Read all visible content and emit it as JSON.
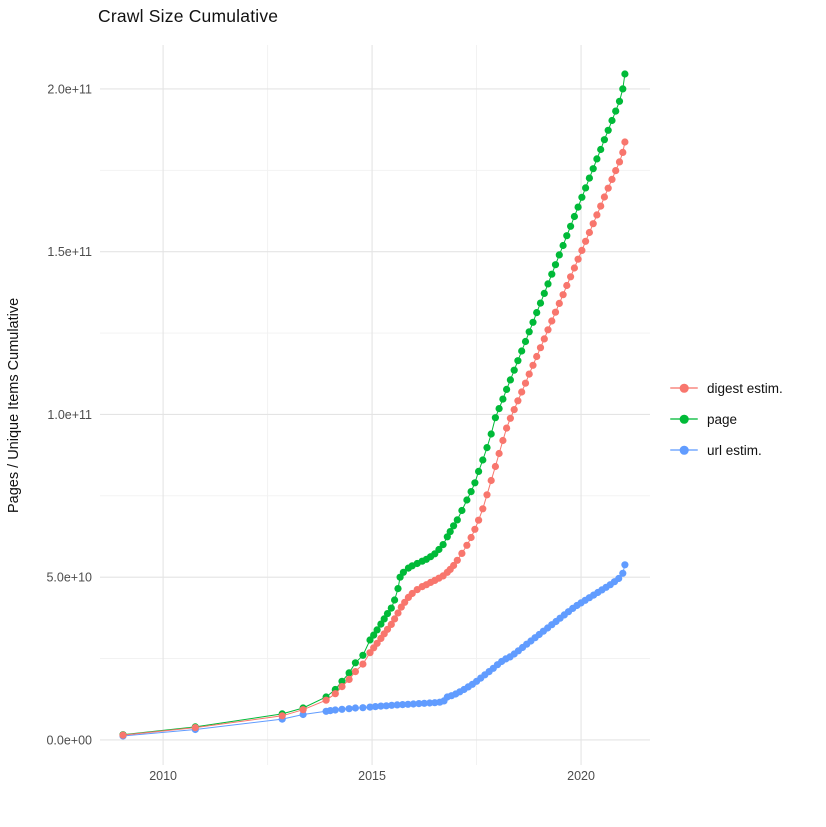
{
  "chart_data": {
    "type": "scatter",
    "title": "Crawl Size Cumulative",
    "xlabel": "",
    "ylabel": "Pages / Unique Items Cumulative",
    "value_unit_note": "point values stored in billions (1e9) of pages/items",
    "xlim": [
      2008.49,
      2021.65
    ],
    "ylim_e9": [
      -7.7,
      213.5
    ],
    "grid": true,
    "legend_position": "right",
    "x_ticks": [
      {
        "value": 2010,
        "label": "2010"
      },
      {
        "value": 2015,
        "label": "2015"
      },
      {
        "value": 2020,
        "label": "2020"
      }
    ],
    "x_minor_ticks": [
      2012.5,
      2017.5
    ],
    "y_ticks": [
      {
        "value": 0,
        "label": "0.0e+00"
      },
      {
        "value": 50,
        "label": "5.0e+10"
      },
      {
        "value": 100,
        "label": "1.0e+11"
      },
      {
        "value": 150,
        "label": "1.5e+11"
      },
      {
        "value": 200,
        "label": "2.0e+11"
      }
    ],
    "y_minor_ticks": [
      25,
      75,
      125,
      175
    ],
    "series": [
      {
        "name": "digest estim.",
        "color": "#F8766D",
        "points": [
          [
            2009.04,
            1.5
          ],
          [
            2010.77,
            3.8
          ],
          [
            2012.85,
            7.4
          ],
          [
            2013.35,
            9.3
          ],
          [
            2013.9,
            12.2
          ],
          [
            2014.12,
            14.2
          ],
          [
            2014.28,
            16.4
          ],
          [
            2014.45,
            18.6
          ],
          [
            2014.6,
            21.0
          ],
          [
            2014.78,
            23.3
          ],
          [
            2014.95,
            26.8
          ],
          [
            2015.04,
            28.3
          ],
          [
            2015.12,
            29.7
          ],
          [
            2015.21,
            31.2
          ],
          [
            2015.29,
            32.6
          ],
          [
            2015.37,
            34.0
          ],
          [
            2015.46,
            35.5
          ],
          [
            2015.54,
            37.2
          ],
          [
            2015.62,
            39.0
          ],
          [
            2015.7,
            40.8
          ],
          [
            2015.78,
            42.3
          ],
          [
            2015.87,
            43.8
          ],
          [
            2015.96,
            45.0
          ],
          [
            2016.08,
            46.2
          ],
          [
            2016.2,
            47.1
          ],
          [
            2016.3,
            47.7
          ],
          [
            2016.4,
            48.4
          ],
          [
            2016.5,
            49.0
          ],
          [
            2016.6,
            49.7
          ],
          [
            2016.7,
            50.4
          ],
          [
            2016.8,
            51.5
          ],
          [
            2016.87,
            52.4
          ],
          [
            2016.95,
            53.6
          ],
          [
            2017.04,
            55.2
          ],
          [
            2017.15,
            57.3
          ],
          [
            2017.27,
            59.8
          ],
          [
            2017.37,
            62.2
          ],
          [
            2017.46,
            64.7
          ],
          [
            2017.55,
            67.5
          ],
          [
            2017.65,
            71.0
          ],
          [
            2017.75,
            75.3
          ],
          [
            2017.85,
            79.7
          ],
          [
            2017.95,
            84.0
          ],
          [
            2018.04,
            88.0
          ],
          [
            2018.13,
            92.0
          ],
          [
            2018.22,
            95.8
          ],
          [
            2018.31,
            98.8
          ],
          [
            2018.4,
            101.5
          ],
          [
            2018.49,
            104.2
          ],
          [
            2018.58,
            106.9
          ],
          [
            2018.67,
            109.6
          ],
          [
            2018.76,
            112.4
          ],
          [
            2018.85,
            115.1
          ],
          [
            2018.94,
            117.8
          ],
          [
            2019.03,
            120.5
          ],
          [
            2019.12,
            123.2
          ],
          [
            2019.21,
            126.0
          ],
          [
            2019.3,
            128.7
          ],
          [
            2019.39,
            131.4
          ],
          [
            2019.48,
            134.1
          ],
          [
            2019.57,
            136.8
          ],
          [
            2019.66,
            139.6
          ],
          [
            2019.75,
            142.3
          ],
          [
            2019.84,
            145.0
          ],
          [
            2019.93,
            147.7
          ],
          [
            2020.02,
            150.4
          ],
          [
            2020.11,
            153.2
          ],
          [
            2020.2,
            155.9
          ],
          [
            2020.29,
            158.6
          ],
          [
            2020.38,
            161.3
          ],
          [
            2020.47,
            164.0
          ],
          [
            2020.56,
            166.8
          ],
          [
            2020.65,
            169.5
          ],
          [
            2020.74,
            172.2
          ],
          [
            2020.83,
            174.9
          ],
          [
            2020.92,
            177.6
          ],
          [
            2021.0,
            180.5
          ],
          [
            2021.05,
            183.7
          ]
        ]
      },
      {
        "name": "page",
        "color": "#00BA38",
        "points": [
          [
            2009.04,
            1.6
          ],
          [
            2010.77,
            4.0
          ],
          [
            2012.85,
            8.0
          ],
          [
            2013.35,
            9.8
          ],
          [
            2013.9,
            13.2
          ],
          [
            2014.12,
            15.5
          ],
          [
            2014.28,
            18.0
          ],
          [
            2014.45,
            20.6
          ],
          [
            2014.6,
            23.7
          ],
          [
            2014.78,
            26.0
          ],
          [
            2014.95,
            30.7
          ],
          [
            2015.04,
            32.2
          ],
          [
            2015.12,
            33.8
          ],
          [
            2015.21,
            35.6
          ],
          [
            2015.29,
            37.2
          ],
          [
            2015.37,
            38.8
          ],
          [
            2015.46,
            40.5
          ],
          [
            2015.54,
            43.0
          ],
          [
            2015.62,
            46.5
          ],
          [
            2015.67,
            50.0
          ],
          [
            2015.75,
            51.5
          ],
          [
            2015.87,
            52.8
          ],
          [
            2015.96,
            53.5
          ],
          [
            2016.08,
            54.2
          ],
          [
            2016.2,
            54.9
          ],
          [
            2016.3,
            55.5
          ],
          [
            2016.4,
            56.3
          ],
          [
            2016.5,
            57.2
          ],
          [
            2016.6,
            58.5
          ],
          [
            2016.7,
            60.0
          ],
          [
            2016.8,
            62.4
          ],
          [
            2016.87,
            64.0
          ],
          [
            2016.95,
            65.8
          ],
          [
            2017.04,
            67.6
          ],
          [
            2017.15,
            70.5
          ],
          [
            2017.27,
            73.7
          ],
          [
            2017.37,
            76.3
          ],
          [
            2017.46,
            79.0
          ],
          [
            2017.55,
            82.5
          ],
          [
            2017.65,
            86.0
          ],
          [
            2017.75,
            89.8
          ],
          [
            2017.85,
            94.0
          ],
          [
            2017.95,
            99.0
          ],
          [
            2018.04,
            101.8
          ],
          [
            2018.13,
            104.7
          ],
          [
            2018.22,
            107.7
          ],
          [
            2018.31,
            110.6
          ],
          [
            2018.4,
            113.6
          ],
          [
            2018.49,
            116.5
          ],
          [
            2018.58,
            119.5
          ],
          [
            2018.67,
            122.4
          ],
          [
            2018.76,
            125.4
          ],
          [
            2018.85,
            128.3
          ],
          [
            2018.94,
            131.3
          ],
          [
            2019.03,
            134.2
          ],
          [
            2019.12,
            137.2
          ],
          [
            2019.21,
            140.1
          ],
          [
            2019.3,
            143.1
          ],
          [
            2019.39,
            146.0
          ],
          [
            2019.48,
            149.0
          ],
          [
            2019.57,
            151.9
          ],
          [
            2019.66,
            154.9
          ],
          [
            2019.75,
            157.8
          ],
          [
            2019.84,
            160.8
          ],
          [
            2019.93,
            163.7
          ],
          [
            2020.02,
            166.7
          ],
          [
            2020.11,
            169.6
          ],
          [
            2020.2,
            172.6
          ],
          [
            2020.29,
            175.5
          ],
          [
            2020.38,
            178.5
          ],
          [
            2020.47,
            181.4
          ],
          [
            2020.56,
            184.4
          ],
          [
            2020.65,
            187.3
          ],
          [
            2020.74,
            190.3
          ],
          [
            2020.83,
            193.2
          ],
          [
            2020.92,
            196.2
          ],
          [
            2021.0,
            200.0
          ],
          [
            2021.05,
            204.6
          ]
        ]
      },
      {
        "name": "url estim.",
        "color": "#619CFF",
        "points": [
          [
            2009.04,
            1.2
          ],
          [
            2010.77,
            3.2
          ],
          [
            2012.85,
            6.4
          ],
          [
            2013.35,
            7.8
          ],
          [
            2013.9,
            8.8
          ],
          [
            2014.0,
            9.0
          ],
          [
            2014.12,
            9.2
          ],
          [
            2014.28,
            9.4
          ],
          [
            2014.45,
            9.6
          ],
          [
            2014.6,
            9.8
          ],
          [
            2014.78,
            9.9
          ],
          [
            2014.95,
            10.1
          ],
          [
            2015.08,
            10.25
          ],
          [
            2015.21,
            10.4
          ],
          [
            2015.34,
            10.5
          ],
          [
            2015.47,
            10.65
          ],
          [
            2015.6,
            10.75
          ],
          [
            2015.73,
            10.85
          ],
          [
            2015.86,
            10.95
          ],
          [
            2015.99,
            11.05
          ],
          [
            2016.12,
            11.15
          ],
          [
            2016.25,
            11.25
          ],
          [
            2016.38,
            11.35
          ],
          [
            2016.5,
            11.45
          ],
          [
            2016.62,
            11.6
          ],
          [
            2016.72,
            12.0
          ],
          [
            2016.8,
            13.2
          ],
          [
            2016.9,
            13.6
          ],
          [
            2017.0,
            14.1
          ],
          [
            2017.1,
            14.8
          ],
          [
            2017.2,
            15.5
          ],
          [
            2017.3,
            16.3
          ],
          [
            2017.4,
            17.1
          ],
          [
            2017.5,
            18.0
          ],
          [
            2017.6,
            19.0
          ],
          [
            2017.7,
            20.0
          ],
          [
            2017.8,
            21.0
          ],
          [
            2017.9,
            22.0
          ],
          [
            2018.0,
            23.1
          ],
          [
            2018.1,
            24.1
          ],
          [
            2018.2,
            24.9
          ],
          [
            2018.3,
            25.5
          ],
          [
            2018.4,
            26.4
          ],
          [
            2018.5,
            27.4
          ],
          [
            2018.6,
            28.4
          ],
          [
            2018.7,
            29.4
          ],
          [
            2018.8,
            30.4
          ],
          [
            2018.9,
            31.4
          ],
          [
            2019.0,
            32.4
          ],
          [
            2019.1,
            33.4
          ],
          [
            2019.2,
            34.4
          ],
          [
            2019.3,
            35.4
          ],
          [
            2019.4,
            36.4
          ],
          [
            2019.5,
            37.4
          ],
          [
            2019.6,
            38.4
          ],
          [
            2019.7,
            39.4
          ],
          [
            2019.8,
            40.4
          ],
          [
            2019.9,
            41.3
          ],
          [
            2020.0,
            42.1
          ],
          [
            2020.1,
            42.9
          ],
          [
            2020.2,
            43.7
          ],
          [
            2020.3,
            44.5
          ],
          [
            2020.4,
            45.3
          ],
          [
            2020.5,
            46.1
          ],
          [
            2020.6,
            46.9
          ],
          [
            2020.7,
            47.7
          ],
          [
            2020.8,
            48.6
          ],
          [
            2020.9,
            49.6
          ],
          [
            2021.0,
            51.2
          ],
          [
            2021.05,
            53.8
          ]
        ]
      }
    ],
    "style": {
      "major_grid_color": "#E4E4E4",
      "minor_grid_color": "#F1F1F1",
      "tick_label_color": "#4D4D4D",
      "text_color": "#111111",
      "background": "#FFFFFF"
    }
  }
}
